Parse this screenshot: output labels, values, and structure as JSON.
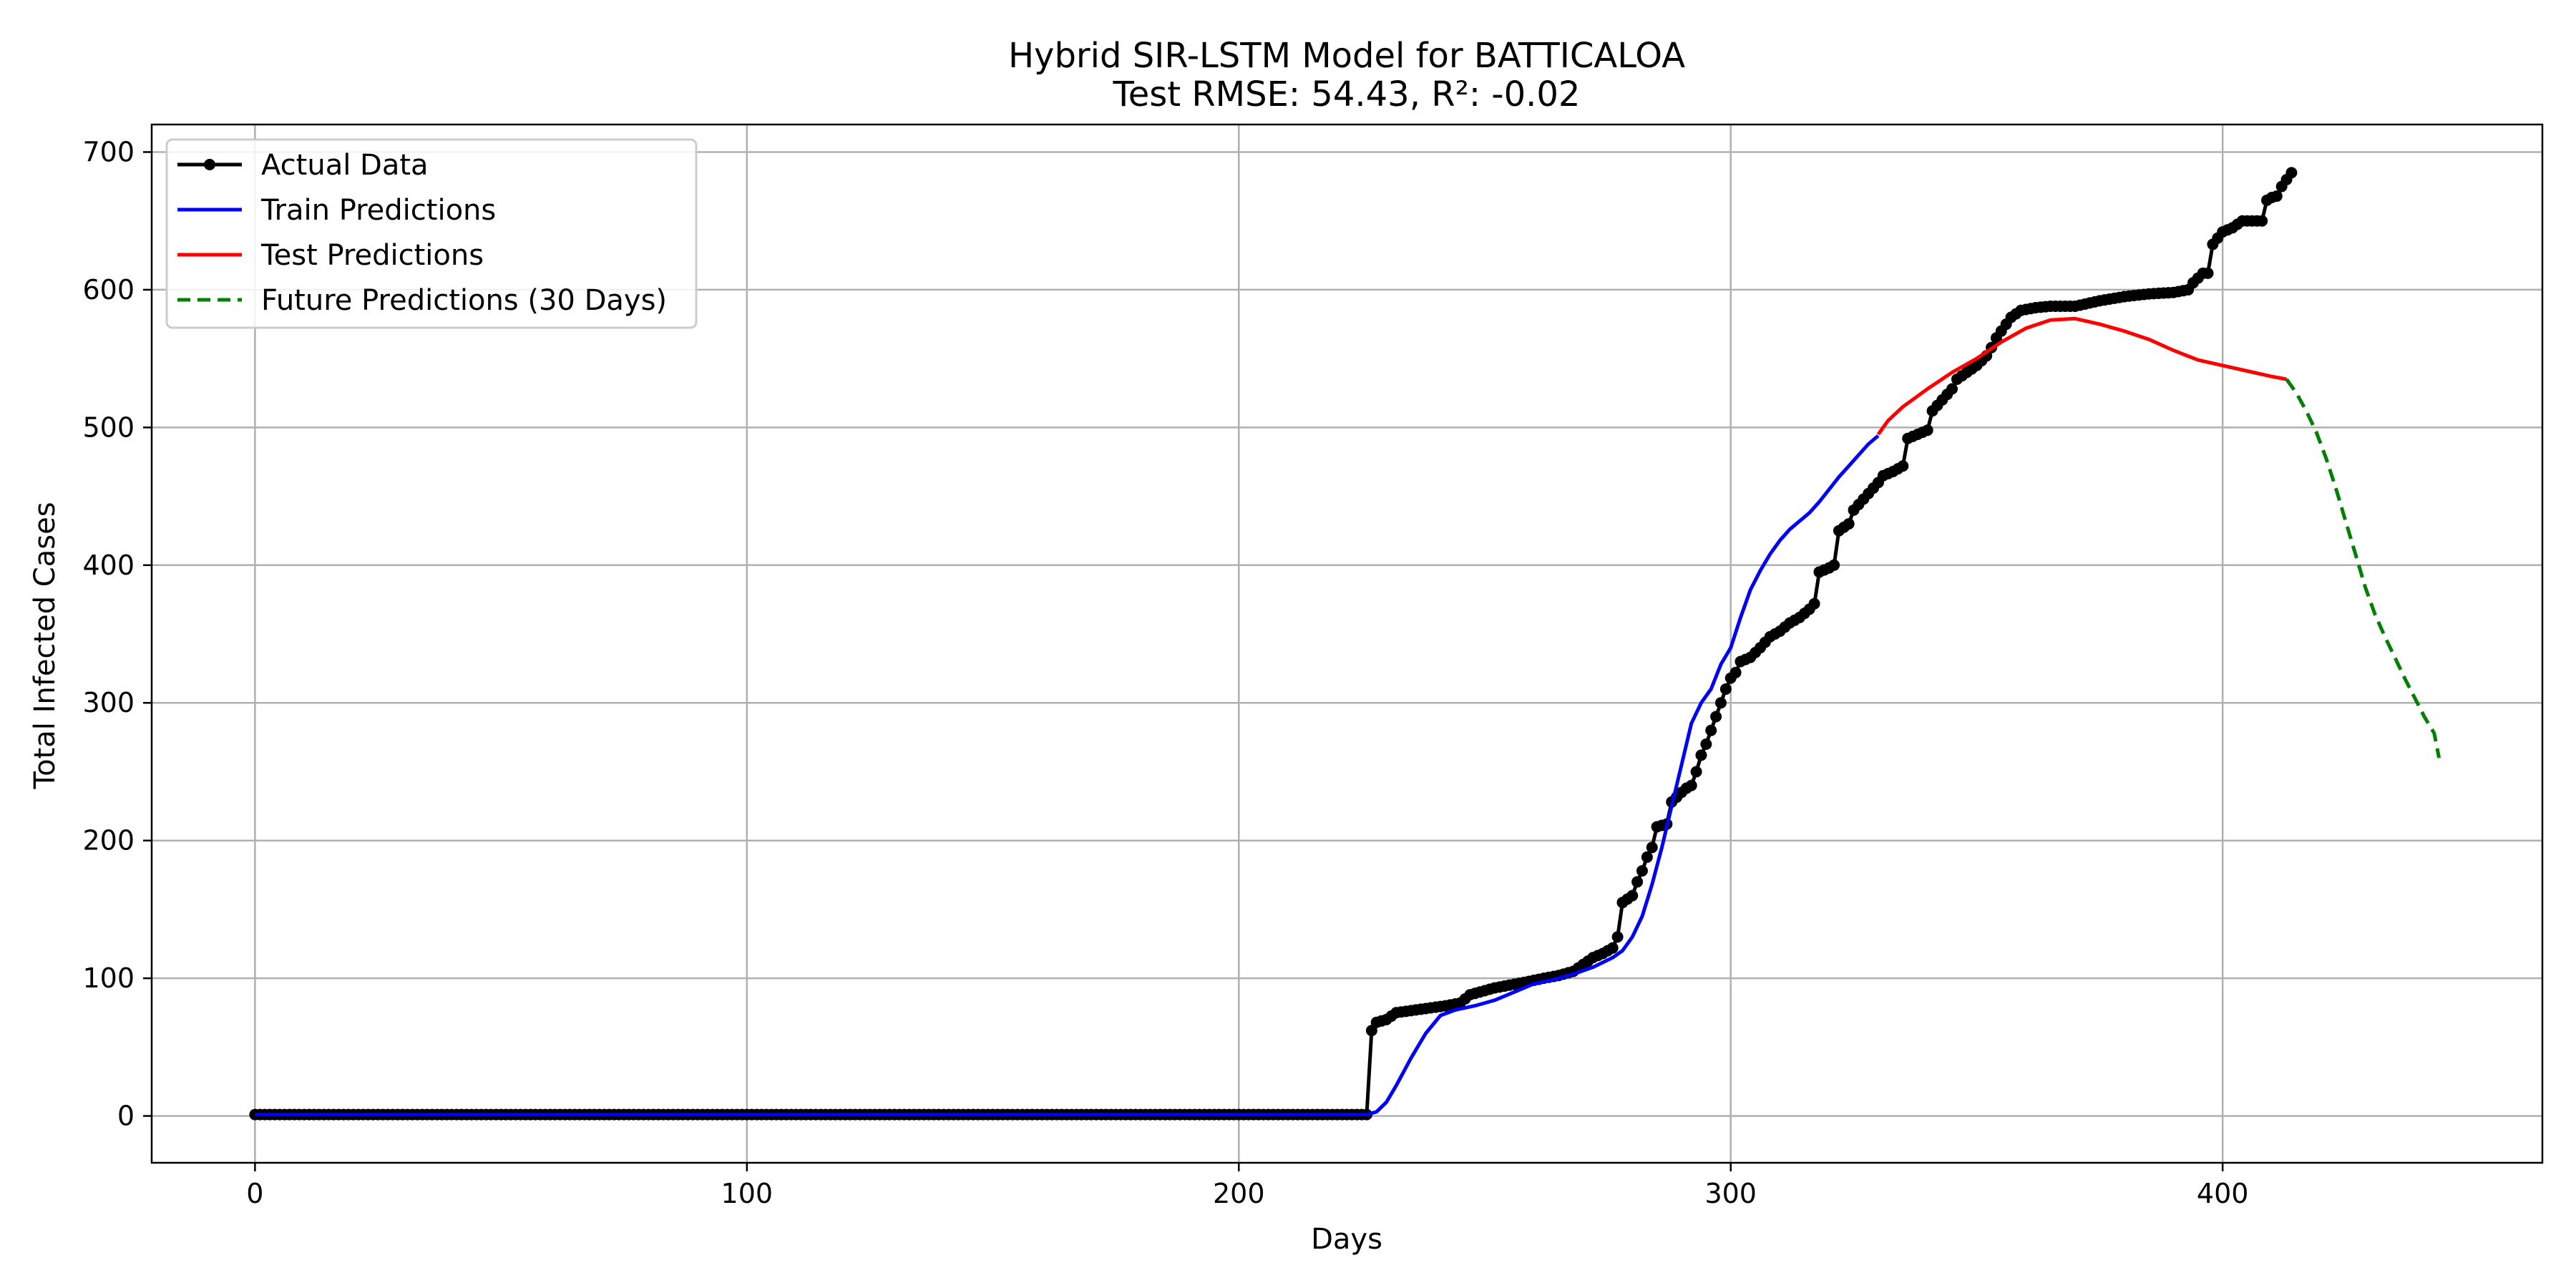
{
  "chart_data": {
    "type": "line",
    "title": "Hybrid SIR-LSTM Model for BATTICALOA",
    "subtitle": "Test RMSE: 54.43, R²: -0.02",
    "xlabel": "Days",
    "ylabel": "Total Infected Cases",
    "xlim": [
      -21,
      465
    ],
    "ylim": [
      -34,
      720
    ],
    "x_ticks": [
      0,
      100,
      200,
      300,
      400
    ],
    "y_ticks": [
      0,
      100,
      200,
      300,
      400,
      500,
      600,
      700
    ],
    "grid": true,
    "legend_position": "top-left",
    "colors": {
      "actual": "#000000",
      "train": "#0000ff",
      "test": "#ff0000",
      "future": "#008000",
      "grid": "#b0b0b0"
    },
    "series": [
      {
        "name": "Actual Data",
        "style": "line-markers",
        "points": [
          [
            0,
            1
          ],
          [
            226,
            1
          ],
          [
            227,
            62
          ],
          [
            228,
            68
          ],
          [
            230,
            70
          ],
          [
            232,
            75
          ],
          [
            234,
            76
          ],
          [
            236,
            77
          ],
          [
            238,
            78
          ],
          [
            242,
            80
          ],
          [
            245,
            82
          ],
          [
            247,
            88
          ],
          [
            249,
            90
          ],
          [
            252,
            93
          ],
          [
            255,
            95
          ],
          [
            258,
            97
          ],
          [
            262,
            100
          ],
          [
            265,
            102
          ],
          [
            268,
            105
          ],
          [
            270,
            110
          ],
          [
            272,
            115
          ],
          [
            274,
            118
          ],
          [
            276,
            122
          ],
          [
            277,
            130
          ],
          [
            278,
            155
          ],
          [
            280,
            160
          ],
          [
            281,
            170
          ],
          [
            282,
            178
          ],
          [
            283,
            188
          ],
          [
            284,
            195
          ],
          [
            285,
            210
          ],
          [
            287,
            212
          ],
          [
            288,
            228
          ],
          [
            290,
            235
          ],
          [
            291,
            238
          ],
          [
            292,
            240
          ],
          [
            293,
            250
          ],
          [
            294,
            262
          ],
          [
            295,
            270
          ],
          [
            296,
            280
          ],
          [
            297,
            290
          ],
          [
            298,
            300
          ],
          [
            299,
            310
          ],
          [
            300,
            318
          ],
          [
            301,
            322
          ],
          [
            302,
            330
          ],
          [
            304,
            333
          ],
          [
            306,
            340
          ],
          [
            308,
            348
          ],
          [
            310,
            352
          ],
          [
            312,
            358
          ],
          [
            314,
            362
          ],
          [
            316,
            368
          ],
          [
            317,
            372
          ],
          [
            318,
            395
          ],
          [
            320,
            398
          ],
          [
            321,
            400
          ],
          [
            322,
            425
          ],
          [
            324,
            430
          ],
          [
            325,
            440
          ],
          [
            327,
            448
          ],
          [
            328,
            452
          ],
          [
            330,
            460
          ],
          [
            331,
            465
          ],
          [
            333,
            468
          ],
          [
            335,
            472
          ],
          [
            336,
            492
          ],
          [
            338,
            495
          ],
          [
            340,
            498
          ],
          [
            341,
            512
          ],
          [
            343,
            520
          ],
          [
            345,
            528
          ],
          [
            346,
            535
          ],
          [
            348,
            540
          ],
          [
            350,
            545
          ],
          [
            352,
            552
          ],
          [
            353,
            558
          ],
          [
            354,
            565
          ],
          [
            355,
            570
          ],
          [
            357,
            580
          ],
          [
            359,
            585
          ],
          [
            362,
            587
          ],
          [
            365,
            588
          ],
          [
            370,
            588
          ],
          [
            375,
            592
          ],
          [
            380,
            595
          ],
          [
            385,
            597
          ],
          [
            390,
            598
          ],
          [
            393,
            600
          ],
          [
            394,
            605
          ],
          [
            396,
            612
          ],
          [
            397,
            612
          ],
          [
            398,
            633
          ],
          [
            400,
            642
          ],
          [
            402,
            645
          ],
          [
            404,
            650
          ],
          [
            407,
            650
          ],
          [
            408,
            650
          ],
          [
            409,
            665
          ],
          [
            410,
            667
          ],
          [
            411,
            668
          ],
          [
            412,
            675
          ],
          [
            413,
            680
          ],
          [
            414,
            685
          ]
        ]
      },
      {
        "name": "Train Predictions",
        "style": "line",
        "points": [
          [
            0,
            1
          ],
          [
            226,
            1
          ],
          [
            228,
            3
          ],
          [
            230,
            10
          ],
          [
            232,
            22
          ],
          [
            235,
            42
          ],
          [
            238,
            60
          ],
          [
            241,
            73
          ],
          [
            244,
            77
          ],
          [
            248,
            80
          ],
          [
            252,
            84
          ],
          [
            256,
            90
          ],
          [
            260,
            96
          ],
          [
            264,
            99
          ],
          [
            268,
            103
          ],
          [
            272,
            108
          ],
          [
            276,
            115
          ],
          [
            278,
            120
          ],
          [
            280,
            130
          ],
          [
            282,
            145
          ],
          [
            284,
            168
          ],
          [
            286,
            195
          ],
          [
            288,
            225
          ],
          [
            290,
            255
          ],
          [
            292,
            285
          ],
          [
            294,
            300
          ],
          [
            296,
            310
          ],
          [
            298,
            328
          ],
          [
            300,
            340
          ],
          [
            302,
            362
          ],
          [
            304,
            382
          ],
          [
            306,
            396
          ],
          [
            308,
            408
          ],
          [
            310,
            418
          ],
          [
            312,
            426
          ],
          [
            314,
            432
          ],
          [
            316,
            438
          ],
          [
            318,
            446
          ],
          [
            320,
            455
          ],
          [
            322,
            464
          ],
          [
            324,
            472
          ],
          [
            326,
            480
          ],
          [
            328,
            488
          ],
          [
            330,
            494
          ]
        ]
      },
      {
        "name": "Test Predictions",
        "style": "line",
        "points": [
          [
            330,
            495
          ],
          [
            332,
            505
          ],
          [
            335,
            515
          ],
          [
            340,
            528
          ],
          [
            345,
            540
          ],
          [
            350,
            550
          ],
          [
            355,
            562
          ],
          [
            360,
            572
          ],
          [
            365,
            578
          ],
          [
            370,
            579
          ],
          [
            375,
            575
          ],
          [
            380,
            570
          ],
          [
            385,
            564
          ],
          [
            390,
            556
          ],
          [
            395,
            549
          ],
          [
            400,
            545
          ],
          [
            405,
            541
          ],
          [
            410,
            537
          ],
          [
            413,
            535
          ]
        ]
      },
      {
        "name": "Future Predictions (30 Days)",
        "style": "dashed",
        "points": [
          [
            413,
            535
          ],
          [
            415,
            525
          ],
          [
            417,
            512
          ],
          [
            419,
            497
          ],
          [
            421,
            478
          ],
          [
            423,
            456
          ],
          [
            425,
            432
          ],
          [
            427,
            408
          ],
          [
            429,
            384
          ],
          [
            431,
            364
          ],
          [
            433,
            348
          ],
          [
            435,
            333
          ],
          [
            437,
            318
          ],
          [
            439,
            304
          ],
          [
            441,
            290
          ],
          [
            443,
            278
          ],
          [
            444,
            260
          ]
        ]
      }
    ]
  }
}
